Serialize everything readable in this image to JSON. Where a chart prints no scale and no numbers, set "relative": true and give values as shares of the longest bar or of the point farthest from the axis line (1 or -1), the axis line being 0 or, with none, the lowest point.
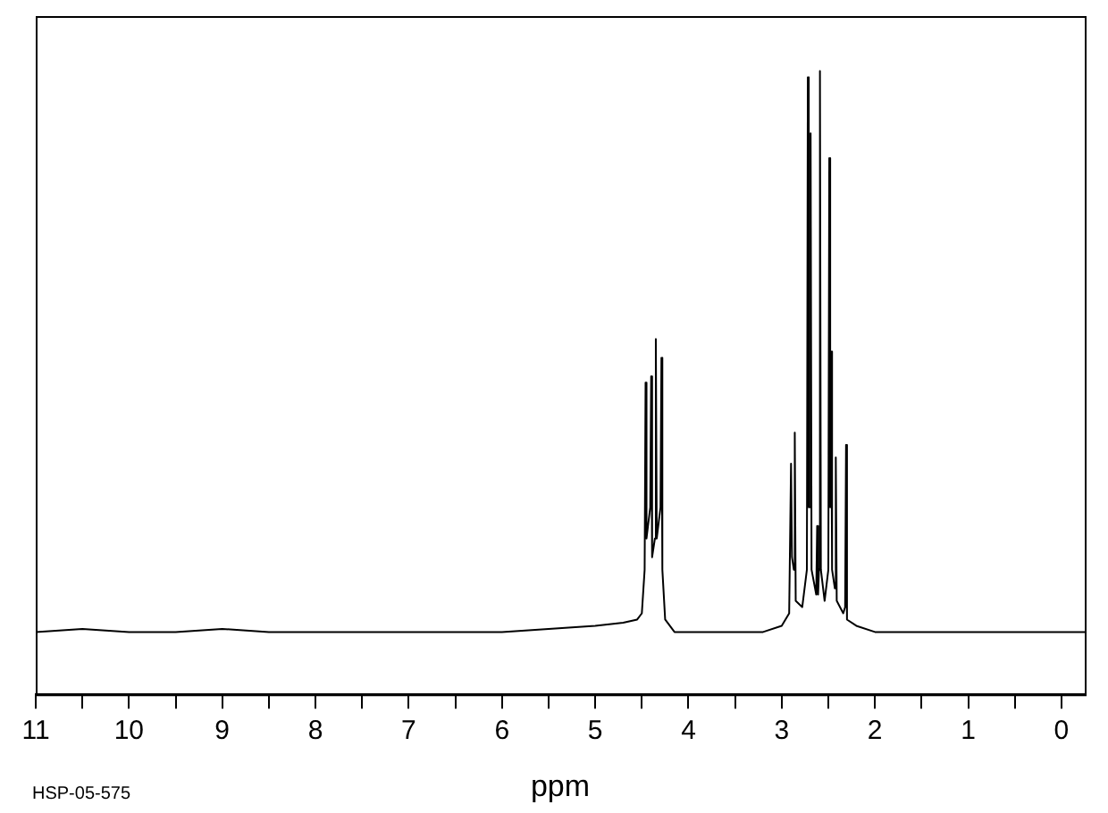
{
  "chart_data": {
    "type": "line",
    "xlabel": "ppm",
    "relative": true,
    "grid": false,
    "legend": false,
    "marker": "none",
    "line_style": "solid",
    "xlim": [
      11,
      -0.25
    ],
    "xticks": [
      11,
      {
        "value": 10.5,
        "label": null
      },
      10,
      {
        "value": 9.5,
        "label": null
      },
      9,
      {
        "value": 8.5,
        "label": null
      },
      8,
      {
        "value": 7.5,
        "label": null
      },
      7,
      {
        "value": 6.5,
        "label": null
      },
      6,
      {
        "value": 5.5,
        "label": null
      },
      5,
      {
        "value": 4.5,
        "label": null
      },
      4,
      {
        "value": 3.5,
        "label": null
      },
      3,
      {
        "value": 2.5,
        "label": null
      },
      2,
      {
        "value": 1.5,
        "label": null
      },
      1,
      {
        "value": 0.5,
        "label": null
      },
      0
    ],
    "annotations": [
      "HSP-05-575"
    ],
    "series": [
      {
        "color": "#000000",
        "x": [
          11.0,
          10.5,
          10.0,
          9.5,
          9.0,
          8.5,
          8.0,
          7.5,
          7.0,
          6.5,
          6.0,
          5.5,
          5.0,
          4.7,
          4.55,
          4.5,
          4.47,
          4.46,
          4.45,
          4.41,
          4.4,
          4.39,
          4.36,
          4.35,
          4.34,
          4.3,
          4.29,
          4.28,
          4.25,
          4.15,
          3.8,
          3.5,
          3.2,
          3.0,
          2.92,
          2.9,
          2.89,
          2.87,
          2.86,
          2.85,
          2.78,
          2.73,
          2.72,
          2.71,
          2.7,
          2.69,
          2.68,
          2.63,
          2.62,
          2.61,
          2.6,
          2.59,
          2.58,
          2.54,
          2.5,
          2.49,
          2.48,
          2.47,
          2.46,
          2.43,
          2.42,
          2.41,
          2.34,
          2.32,
          2.31,
          2.3,
          2.2,
          2.0,
          1.5,
          1.0,
          0.5,
          0,
          -0.25
        ],
        "values": [
          0.1,
          0.105,
          0.1,
          0.1,
          0.105,
          0.1,
          0.1,
          0.1,
          0.1,
          0.1,
          0.1,
          0.105,
          0.11,
          0.115,
          0.12,
          0.13,
          0.2,
          0.5,
          0.25,
          0.3,
          0.51,
          0.22,
          0.25,
          0.57,
          0.25,
          0.3,
          0.54,
          0.2,
          0.12,
          0.1,
          0.1,
          0.1,
          0.1,
          0.11,
          0.13,
          0.37,
          0.22,
          0.2,
          0.42,
          0.15,
          0.14,
          0.2,
          0.99,
          0.3,
          0.3,
          0.9,
          0.2,
          0.16,
          0.27,
          0.16,
          0.2,
          1.0,
          0.2,
          0.15,
          0.2,
          0.86,
          0.3,
          0.55,
          0.2,
          0.17,
          0.38,
          0.15,
          0.13,
          0.14,
          0.4,
          0.12,
          0.11,
          0.1,
          0.1,
          0.1,
          0.1,
          0.1,
          0.1
        ]
      }
    ]
  }
}
